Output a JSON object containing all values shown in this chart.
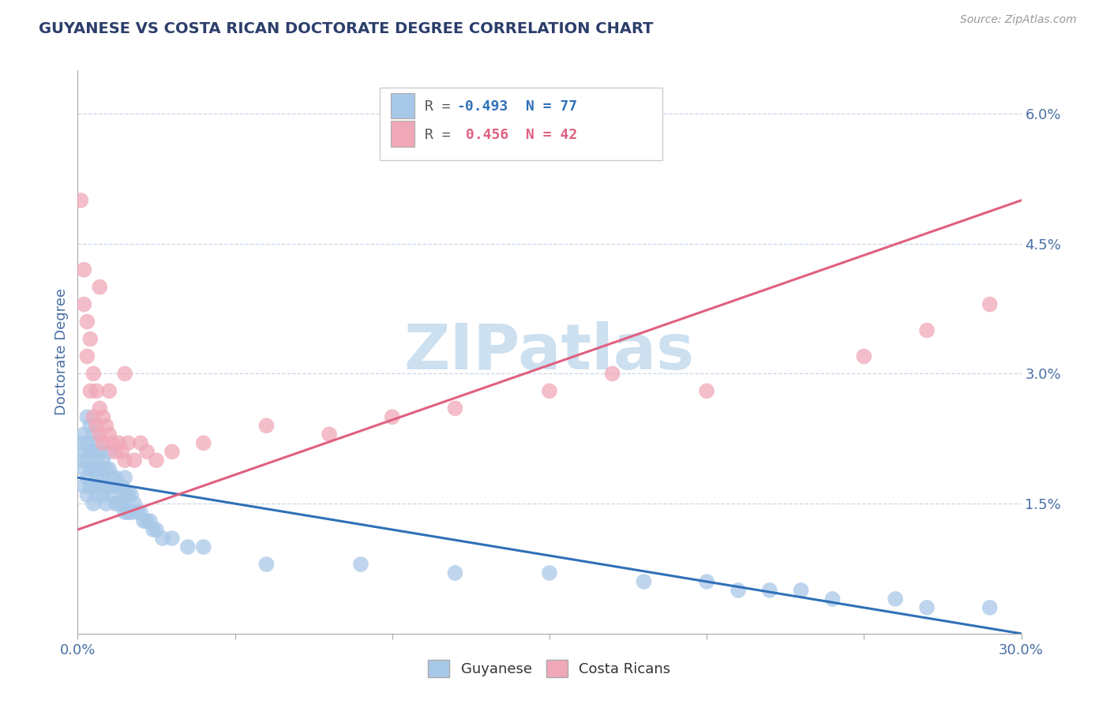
{
  "title": "GUYANESE VS COSTA RICAN DOCTORATE DEGREE CORRELATION CHART",
  "source_text": "Source: ZipAtlas.com",
  "ylabel": "Doctorate Degree",
  "xlim": [
    0.0,
    0.3
  ],
  "ylim": [
    0.0,
    0.065
  ],
  "xticks": [
    0.0,
    0.05,
    0.1,
    0.15,
    0.2,
    0.25,
    0.3
  ],
  "xtick_labels": [
    "0.0%",
    "",
    "",
    "",
    "",
    "",
    "30.0%"
  ],
  "yticks": [
    0.0,
    0.015,
    0.03,
    0.045,
    0.06
  ],
  "ytick_labels": [
    "",
    "1.5%",
    "3.0%",
    "4.5%",
    "6.0%"
  ],
  "background_color": "#ffffff",
  "grid_color": "#c8d8e8",
  "title_color": "#2c3e6b",
  "axis_label_color": "#4a6fa5",
  "tick_label_color": "#4a6fa5",
  "watermark_text": "ZIPatlas",
  "watermark_color": "#cce0f0",
  "legend_R1": "-0.493",
  "legend_N1": "77",
  "legend_R2": "0.456",
  "legend_N2": "42",
  "blue_color": "#a8c8e8",
  "pink_color": "#f0a8b8",
  "blue_line_color": "#3070b8",
  "pink_line_color": "#e06080",
  "blue_trend_x": [
    0.0,
    0.3
  ],
  "blue_trend_y": [
    0.018,
    0.0
  ],
  "pink_trend_x": [
    0.0,
    0.3
  ],
  "pink_trend_y": [
    0.012,
    0.05
  ],
  "blue_points_x": [
    0.001,
    0.001,
    0.002,
    0.002,
    0.002,
    0.002,
    0.003,
    0.003,
    0.003,
    0.003,
    0.003,
    0.004,
    0.004,
    0.004,
    0.004,
    0.005,
    0.005,
    0.005,
    0.005,
    0.005,
    0.006,
    0.006,
    0.006,
    0.006,
    0.007,
    0.007,
    0.007,
    0.008,
    0.008,
    0.008,
    0.009,
    0.009,
    0.009,
    0.01,
    0.01,
    0.01,
    0.011,
    0.011,
    0.012,
    0.012,
    0.012,
    0.013,
    0.013,
    0.014,
    0.014,
    0.015,
    0.015,
    0.015,
    0.016,
    0.016,
    0.017,
    0.017,
    0.018,
    0.019,
    0.02,
    0.021,
    0.022,
    0.023,
    0.024,
    0.025,
    0.027,
    0.03,
    0.035,
    0.04,
    0.06,
    0.09,
    0.12,
    0.15,
    0.18,
    0.2,
    0.21,
    0.22,
    0.23,
    0.24,
    0.26,
    0.27,
    0.29
  ],
  "blue_points_y": [
    0.022,
    0.02,
    0.023,
    0.021,
    0.019,
    0.017,
    0.025,
    0.022,
    0.02,
    0.018,
    0.016,
    0.024,
    0.021,
    0.019,
    0.017,
    0.023,
    0.021,
    0.019,
    0.017,
    0.015,
    0.022,
    0.02,
    0.018,
    0.016,
    0.021,
    0.019,
    0.017,
    0.02,
    0.018,
    0.016,
    0.019,
    0.017,
    0.015,
    0.021,
    0.019,
    0.017,
    0.018,
    0.016,
    0.018,
    0.017,
    0.015,
    0.017,
    0.015,
    0.017,
    0.015,
    0.018,
    0.016,
    0.014,
    0.016,
    0.014,
    0.016,
    0.014,
    0.015,
    0.014,
    0.014,
    0.013,
    0.013,
    0.013,
    0.012,
    0.012,
    0.011,
    0.011,
    0.01,
    0.01,
    0.008,
    0.008,
    0.007,
    0.007,
    0.006,
    0.006,
    0.005,
    0.005,
    0.005,
    0.004,
    0.004,
    0.003,
    0.003
  ],
  "pink_points_x": [
    0.001,
    0.002,
    0.002,
    0.003,
    0.003,
    0.004,
    0.004,
    0.005,
    0.005,
    0.006,
    0.006,
    0.007,
    0.007,
    0.008,
    0.008,
    0.009,
    0.01,
    0.011,
    0.012,
    0.013,
    0.014,
    0.015,
    0.016,
    0.018,
    0.02,
    0.022,
    0.025,
    0.03,
    0.04,
    0.06,
    0.08,
    0.1,
    0.12,
    0.15,
    0.17,
    0.2,
    0.25,
    0.27,
    0.29,
    0.015,
    0.01,
    0.007
  ],
  "pink_points_y": [
    0.05,
    0.042,
    0.038,
    0.036,
    0.032,
    0.034,
    0.028,
    0.03,
    0.025,
    0.028,
    0.024,
    0.026,
    0.023,
    0.025,
    0.022,
    0.024,
    0.023,
    0.022,
    0.021,
    0.022,
    0.021,
    0.02,
    0.022,
    0.02,
    0.022,
    0.021,
    0.02,
    0.021,
    0.022,
    0.024,
    0.023,
    0.025,
    0.026,
    0.028,
    0.03,
    0.028,
    0.032,
    0.035,
    0.038,
    0.03,
    0.028,
    0.04
  ]
}
